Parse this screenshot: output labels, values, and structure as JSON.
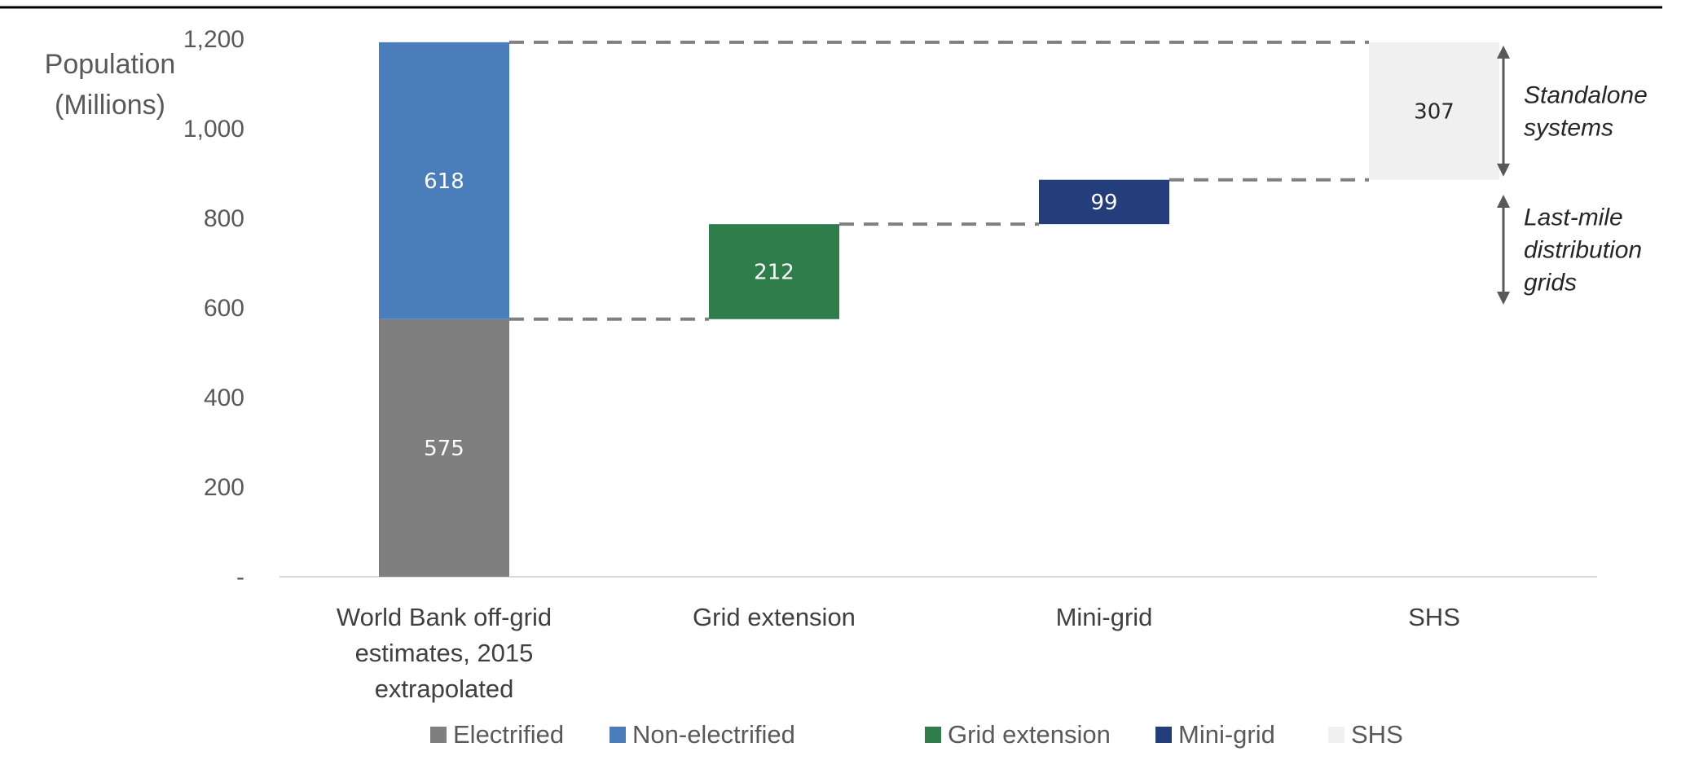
{
  "chart_data": {
    "type": "bar",
    "subtype": "waterfall",
    "ylabel": [
      "Population",
      "(Millions)"
    ],
    "ylim": [
      0,
      1200
    ],
    "yticks": [
      {
        "value": 0,
        "label": "-"
      },
      {
        "value": 200,
        "label": "200"
      },
      {
        "value": 400,
        "label": "400"
      },
      {
        "value": 600,
        "label": "600"
      },
      {
        "value": 800,
        "label": "800"
      },
      {
        "value": 1000,
        "label": "1,000"
      },
      {
        "value": 1200,
        "label": "1,200"
      }
    ],
    "categories": [
      [
        "World Bank off-grid",
        "estimates, 2015",
        "extrapolated"
      ],
      [
        "Grid extension"
      ],
      [
        "Mini-grid"
      ],
      [
        "SHS"
      ]
    ],
    "segments": [
      {
        "category": 0,
        "series": "Electrified",
        "base": 0,
        "value": 575,
        "label": "575"
      },
      {
        "category": 0,
        "series": "Non-electrified",
        "base": 575,
        "value": 618,
        "label": "618"
      },
      {
        "category": 1,
        "series": "Grid extension",
        "base": 575,
        "value": 212,
        "label": "212"
      },
      {
        "category": 2,
        "series": "Mini-grid",
        "base": 787,
        "value": 99,
        "label": "99"
      },
      {
        "category": 3,
        "series": "SHS",
        "base": 886,
        "value": 307,
        "label": "307"
      }
    ],
    "connectors": [
      {
        "from": 0,
        "to": 1,
        "value": 575
      },
      {
        "from": 1,
        "to": 2,
        "value": 787
      },
      {
        "from": 2,
        "to": 3,
        "value": 886
      },
      {
        "from": 0,
        "to": 3,
        "value": 1193
      }
    ],
    "annotations": [
      {
        "lines": [
          "Standalone",
          "systems"
        ],
        "from": 886,
        "to": 1193
      },
      {
        "lines": [
          "Last-mile",
          "distribution",
          "grids"
        ],
        "from": 600,
        "to": 860
      }
    ],
    "series_colors": {
      "Electrified": "#7f7f7f",
      "Non-electrified": "#4a7ebb",
      "Grid extension": "#2e7d4a",
      "Mini-grid": "#233e7a",
      "SHS": "#f0f0f0"
    },
    "label_colors": {
      "Electrified": "#ffffff",
      "Non-electrified": "#ffffff",
      "Grid extension": "#ffffff",
      "Mini-grid": "#ffffff",
      "SHS": "#262626"
    },
    "legend": {
      "position": "bottom",
      "entries": [
        "Electrified",
        "Non-electrified",
        "Grid extension",
        "Mini-grid",
        "SHS"
      ]
    },
    "grid": false
  }
}
